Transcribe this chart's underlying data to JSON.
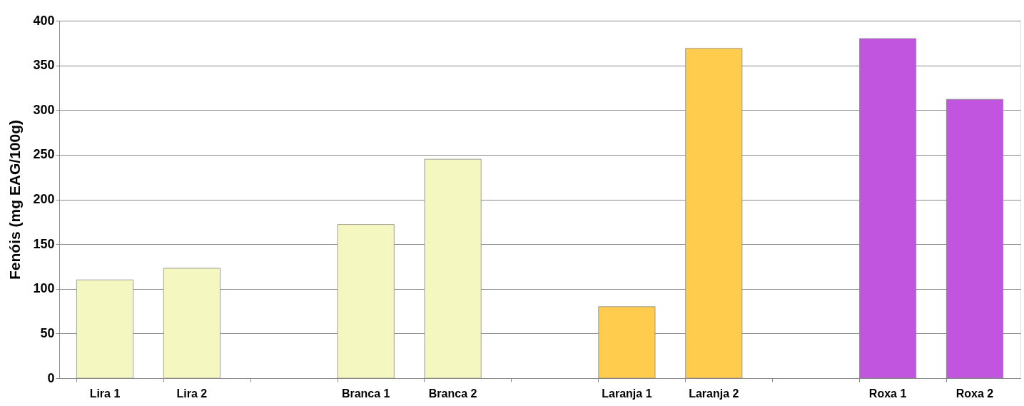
{
  "chart_data": {
    "type": "bar",
    "ylabel": "Fenóis (mg EAG/100g)",
    "categories": [
      "Lira 1",
      "Lira 2",
      null,
      "Branca 1",
      "Branca 2",
      null,
      "Laranja 1",
      "Laranja 2",
      null,
      "Roxa 1",
      "Roxa 2"
    ],
    "values": [
      110,
      123,
      null,
      172,
      245,
      null,
      80,
      369,
      null,
      380,
      312
    ],
    "colors": [
      "#f5f7c0",
      "#f5f7c0",
      "#f5f7c0",
      "#f5f7c0",
      "#f5f7c0",
      "#ffcc4d",
      "#ffcc4d",
      "#ffcc4d",
      "#c155e0",
      "#c155e0",
      "#c155e0"
    ],
    "ylim": [
      0,
      400
    ],
    "yticks": [
      0,
      50,
      100,
      150,
      200,
      250,
      300,
      350,
      400
    ],
    "grid": "y"
  }
}
